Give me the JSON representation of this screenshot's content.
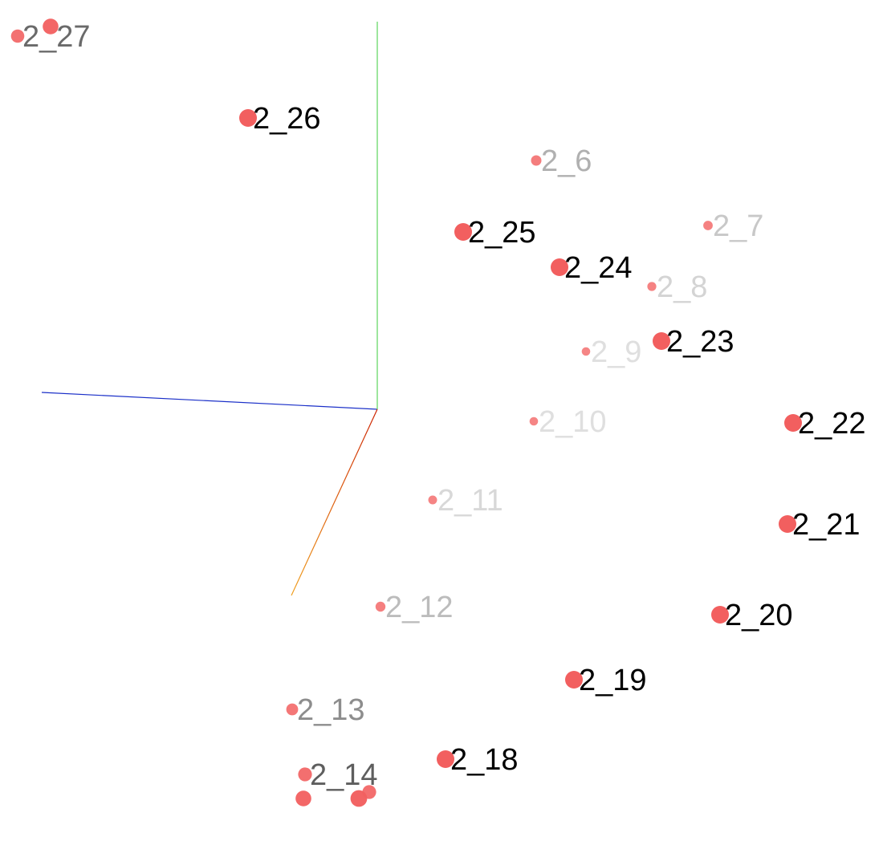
{
  "colors": {
    "background": "#ffffff",
    "point": "#f25f5f",
    "axis_x": "#1a2fc8",
    "axis_y": "#5cd65c",
    "axis_z_start": "#cc2200",
    "axis_z_end": "#f0a020"
  },
  "view": "3d-scatter",
  "points": [
    {
      "label": "2_27",
      "depth": 0.55
    },
    {
      "label": "2_26",
      "depth": 1.0
    },
    {
      "label": "2_6",
      "depth": 0.25
    },
    {
      "label": "2_7",
      "depth": 0.15
    },
    {
      "label": "2_25",
      "depth": 1.0
    },
    {
      "label": "2_24",
      "depth": 1.0
    },
    {
      "label": "2_8",
      "depth": 0.1
    },
    {
      "label": "2_23",
      "depth": 1.0
    },
    {
      "label": "2_9",
      "depth": 0.05
    },
    {
      "label": "2_22",
      "depth": 1.0
    },
    {
      "label": "2_10",
      "depth": 0.05
    },
    {
      "label": "2_21",
      "depth": 1.0
    },
    {
      "label": "2_11",
      "depth": 0.08
    },
    {
      "label": "2_20",
      "depth": 1.0
    },
    {
      "label": "2_12",
      "depth": 0.2
    },
    {
      "label": "2_19",
      "depth": 1.0
    },
    {
      "label": "2_13",
      "depth": 0.4
    },
    {
      "label": "2_18",
      "depth": 1.0
    },
    {
      "label": "2_14",
      "depth": 0.6
    },
    {
      "label": "",
      "depth": 0.8
    },
    {
      "label": "",
      "depth": 0.8
    },
    {
      "label": "",
      "depth": 0.9
    },
    {
      "label": "",
      "depth": 0.6
    }
  ]
}
